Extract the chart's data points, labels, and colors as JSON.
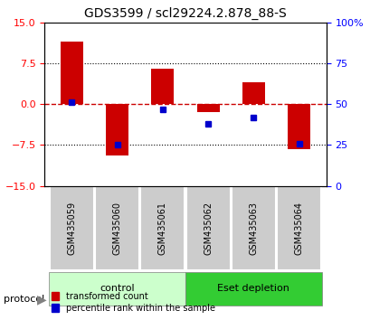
{
  "title": "GDS3599 / scl29224.2.878_88-S",
  "samples": [
    "GSM435059",
    "GSM435060",
    "GSM435061",
    "GSM435062",
    "GSM435063",
    "GSM435064"
  ],
  "red_values": [
    11.5,
    -9.5,
    6.5,
    -1.5,
    4.0,
    -8.2
  ],
  "blue_percentiles": [
    51,
    25,
    47,
    38,
    42,
    26
  ],
  "ylim": [
    -15,
    15
  ],
  "yticks_left": [
    -15,
    -7.5,
    0,
    7.5,
    15
  ],
  "yticks_right": [
    0,
    25,
    50,
    75,
    100
  ],
  "bar_color": "#cc0000",
  "blue_color": "#0000cc",
  "zero_line_color": "#cc0000",
  "grid_color": "#000000",
  "control_samples": [
    0,
    1,
    2
  ],
  "eset_samples": [
    3,
    4,
    5
  ],
  "control_label": "control",
  "eset_label": "Eset depletion",
  "control_color_light": "#ccffcc",
  "control_color_dark": "#66dd66",
  "eset_color_dark": "#33cc33",
  "label_box_color": "#cccccc",
  "protocol_label": "protocol",
  "legend_red_label": "transformed count",
  "legend_blue_label": "percentile rank within the sample",
  "bar_width": 0.5
}
